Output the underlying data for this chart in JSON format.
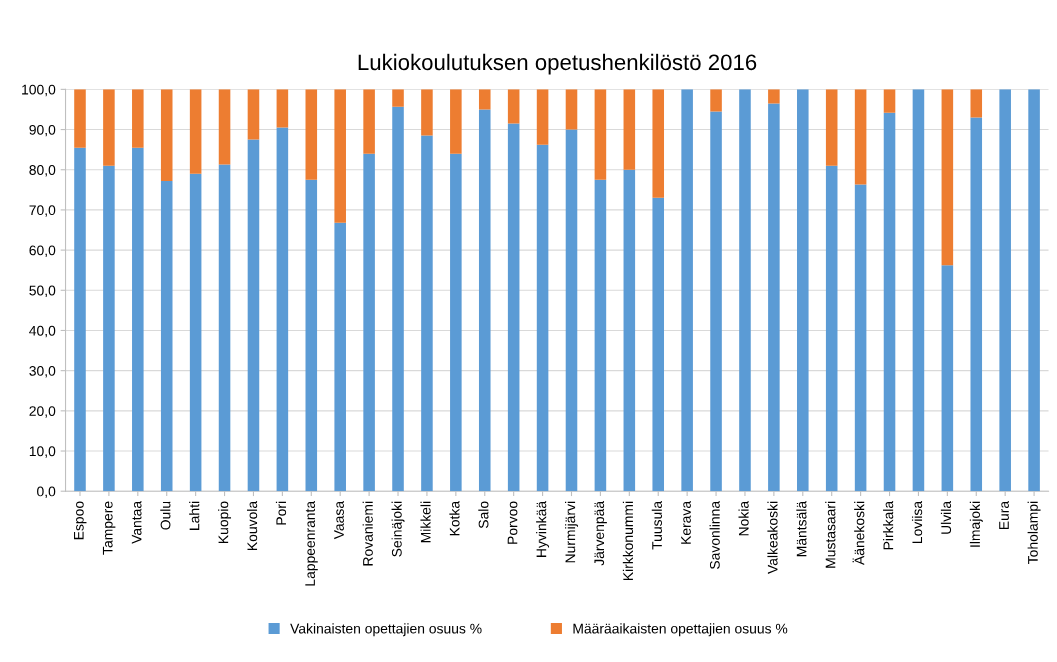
{
  "chart_data": {
    "type": "bar",
    "stacked": true,
    "title": "Lukiokoulutuksen opetushenkilöstö 2016",
    "categories": [
      "Espoo",
      "Tampere",
      "Vantaa",
      "Oulu",
      "Lahti",
      "Kuopio",
      "Kouvola",
      "Pori",
      "Lappeenranta",
      "Vaasa",
      "Rovaniemi",
      "Seinäjoki",
      "Mikkeli",
      "Kotka",
      "Salo",
      "Porvoo",
      "Hyvinkää",
      "Nurmijärvi",
      "Järvenpää",
      "Kirkkonummi",
      "Tuusula",
      "Kerava",
      "Savonlinna",
      "Nokia",
      "Valkeakoski",
      "Mäntsälä",
      "Mustasaari",
      "Äänekoski",
      "Pirkkala",
      "Loviisa",
      "Ulvila",
      "Ilmajoki",
      "Eura",
      "Toholampi"
    ],
    "series": [
      {
        "name": "Vakinaisten opettajien osuus %",
        "color": "#5b9bd5",
        "values": [
          85.5,
          81,
          85.5,
          77.2,
          79,
          81.3,
          87.5,
          90.5,
          77.5,
          66.8,
          84,
          95.7,
          88.5,
          84,
          95,
          91.5,
          86.2,
          90,
          77.5,
          80,
          73,
          100,
          94.5,
          100,
          96.5,
          100,
          81,
          76.3,
          94.2,
          100,
          56.2,
          93,
          100,
          100
        ]
      },
      {
        "name": "Määräaikaisten opettajien osuus %",
        "color": "#ed7d31",
        "values": [
          14.5,
          19,
          14.5,
          22.8,
          21,
          18.7,
          12.5,
          9.5,
          22.5,
          33.2,
          16,
          4.3,
          11.5,
          16,
          5,
          8.5,
          13.8,
          10,
          22.5,
          20,
          27,
          0,
          5.5,
          0,
          3.5,
          0,
          19,
          23.7,
          5.8,
          0,
          43.8,
          7,
          0,
          0
        ]
      }
    ],
    "ylim": [
      0,
      100
    ],
    "yticks": [
      {
        "value": 0,
        "label": "0,0"
      },
      {
        "value": 10,
        "label": "10,0"
      },
      {
        "value": 20,
        "label": "20,0"
      },
      {
        "value": 30,
        "label": "30,0"
      },
      {
        "value": 40,
        "label": "40,0"
      },
      {
        "value": 50,
        "label": "50,0"
      },
      {
        "value": 60,
        "label": "60,0"
      },
      {
        "value": 70,
        "label": "70,0"
      },
      {
        "value": 80,
        "label": "80,0"
      },
      {
        "value": 90,
        "label": "90,0"
      },
      {
        "value": 100,
        "label": "100,0"
      }
    ],
    "grid": "y",
    "legend": "bottom"
  }
}
